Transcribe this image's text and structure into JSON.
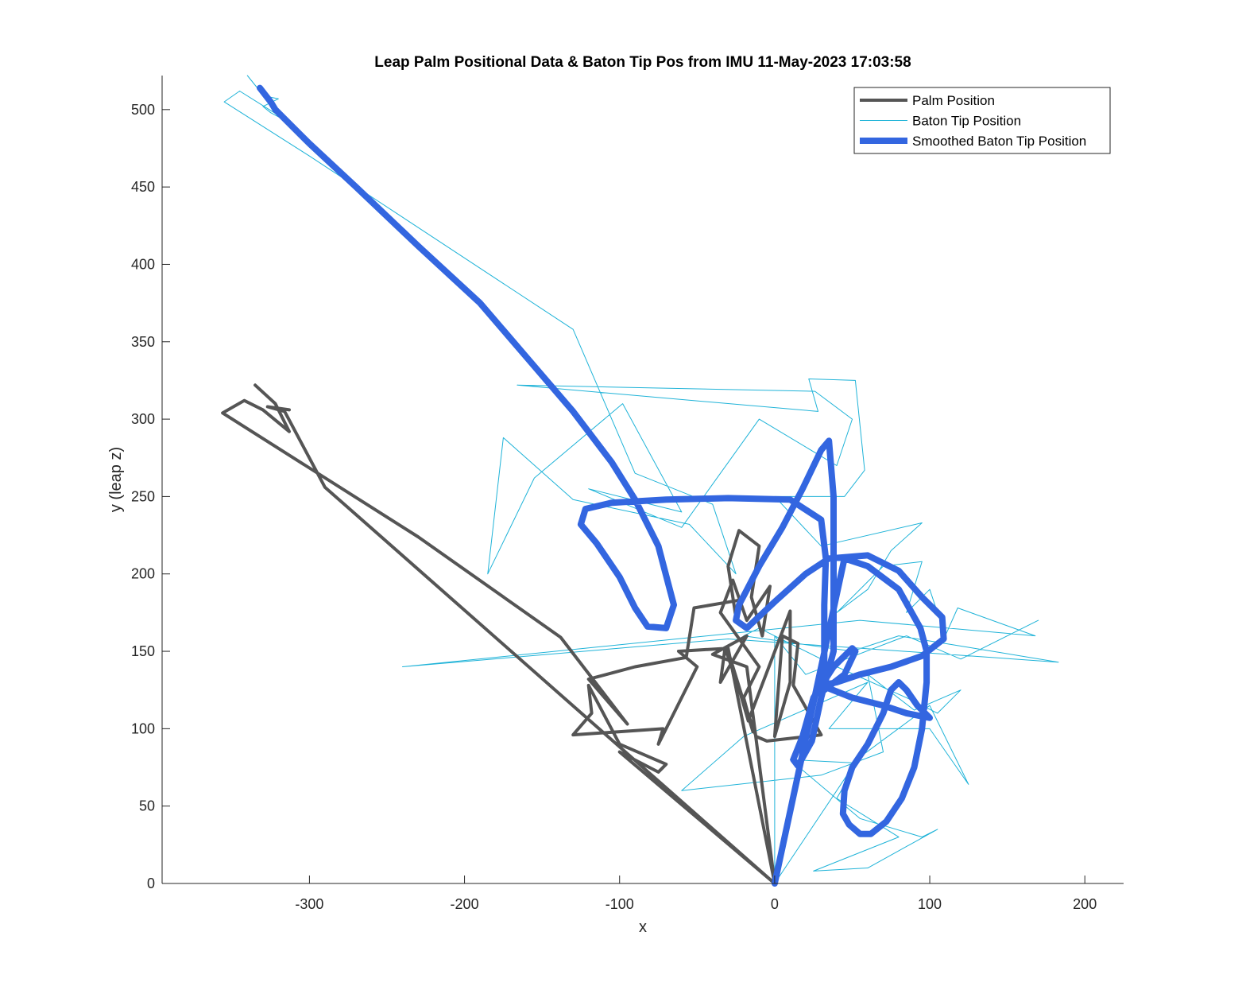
{
  "chart_data": {
    "type": "line",
    "title": "Leap Palm Positional Data & Baton Tip Pos from IMU 11-May-2023 17:03:58",
    "xlabel": "x",
    "ylabel": "y (leap z)",
    "xlim": [
      -395,
      225
    ],
    "ylim": [
      0,
      522
    ],
    "xticks": [
      -300,
      -200,
      -100,
      0,
      100,
      200
    ],
    "yticks": [
      0,
      50,
      100,
      150,
      200,
      250,
      300,
      350,
      400,
      450,
      500
    ],
    "grid": false,
    "legend_position": "top-right",
    "series": [
      {
        "name": "Palm Position",
        "color": "#555555",
        "width": 4,
        "points": [
          [
            -335,
            322
          ],
          [
            -322,
            310
          ],
          [
            -313,
            292
          ],
          [
            -330,
            306
          ],
          [
            -342,
            312
          ],
          [
            -356,
            304
          ],
          [
            -230,
            224
          ],
          [
            -138,
            159
          ],
          [
            -95,
            103
          ],
          [
            -120,
            132
          ],
          [
            -105,
            136
          ],
          [
            -90,
            140
          ],
          [
            -57,
            146
          ],
          [
            -52,
            178
          ],
          [
            -23,
            183
          ],
          [
            -25,
            172
          ],
          [
            -30,
            205
          ],
          [
            -23,
            228
          ],
          [
            -10,
            218
          ],
          [
            -15,
            185
          ],
          [
            -8,
            160
          ],
          [
            -3,
            192
          ],
          [
            -18,
            170
          ],
          [
            -27,
            196
          ],
          [
            -35,
            175
          ],
          [
            -10,
            140
          ],
          [
            -20,
            120
          ],
          [
            -14,
            98
          ],
          [
            -30,
            150
          ],
          [
            -17,
            105
          ],
          [
            10,
            176
          ],
          [
            10,
            130
          ],
          [
            0,
            95
          ],
          [
            5,
            160
          ],
          [
            15,
            155
          ],
          [
            12,
            128
          ],
          [
            30,
            96
          ],
          [
            -5,
            92
          ],
          [
            -12,
            95
          ],
          [
            -32,
            152
          ],
          [
            -35,
            130
          ],
          [
            -18,
            160
          ],
          [
            -40,
            148
          ],
          [
            -18,
            140
          ],
          [
            0,
            0
          ],
          [
            -30,
            152
          ],
          [
            -62,
            150
          ],
          [
            -50,
            140
          ],
          [
            -75,
            90
          ],
          [
            -72,
            100
          ],
          [
            -130,
            96
          ],
          [
            -118,
            110
          ],
          [
            -120,
            128
          ],
          [
            -100,
            90
          ],
          [
            -70,
            77
          ],
          [
            -75,
            72
          ],
          [
            -100,
            85
          ],
          [
            0,
            0
          ],
          [
            -290,
            256
          ],
          [
            -316,
            305
          ],
          [
            -327,
            308
          ],
          [
            -313,
            306
          ]
        ]
      },
      {
        "name": "Baton Tip Position",
        "color": "#1fb3d8",
        "width": 1,
        "points": [
          [
            -340,
            522
          ],
          [
            -332,
            512
          ],
          [
            -325,
            508
          ],
          [
            -320,
            507
          ],
          [
            -330,
            502
          ],
          [
            -325,
            498
          ],
          [
            -310,
            490
          ],
          [
            -345,
            512
          ],
          [
            -355,
            505
          ],
          [
            -300,
            470
          ],
          [
            -130,
            358
          ],
          [
            -90,
            265
          ],
          [
            -40,
            245
          ],
          [
            -25,
            200
          ],
          [
            -55,
            232
          ],
          [
            -130,
            248
          ],
          [
            -175,
            288
          ],
          [
            -185,
            200
          ],
          [
            -155,
            262
          ],
          [
            -98,
            310
          ],
          [
            -60,
            240
          ],
          [
            -120,
            255
          ],
          [
            -60,
            230
          ],
          [
            -10,
            300
          ],
          [
            40,
            270
          ],
          [
            50,
            300
          ],
          [
            26,
            318
          ],
          [
            -166,
            322
          ],
          [
            28,
            305
          ],
          [
            22,
            326
          ],
          [
            52,
            325
          ],
          [
            58,
            267
          ],
          [
            45,
            250
          ],
          [
            0,
            250
          ],
          [
            30,
            218
          ],
          [
            95,
            233
          ],
          [
            75,
            215
          ],
          [
            60,
            190
          ],
          [
            40,
            175
          ],
          [
            70,
            205
          ],
          [
            95,
            208
          ],
          [
            85,
            175
          ],
          [
            100,
            190
          ],
          [
            110,
            160
          ],
          [
            118,
            178
          ],
          [
            168,
            160
          ],
          [
            55,
            170
          ],
          [
            -240,
            140
          ],
          [
            -30,
            158
          ],
          [
            183,
            143
          ],
          [
            110,
            155
          ],
          [
            80,
            160
          ],
          [
            50,
            150
          ],
          [
            -20,
            160
          ],
          [
            -10,
            165
          ],
          [
            40,
            140
          ],
          [
            85,
            120
          ],
          [
            105,
            110
          ],
          [
            120,
            125
          ],
          [
            90,
            112
          ],
          [
            60,
            135
          ],
          [
            70,
            85
          ],
          [
            30,
            70
          ],
          [
            -60,
            60
          ],
          [
            -20,
            95
          ],
          [
            60,
            130
          ],
          [
            35,
            100
          ],
          [
            100,
            100
          ],
          [
            125,
            64
          ],
          [
            100,
            115
          ],
          [
            50,
            78
          ],
          [
            10,
            80
          ],
          [
            55,
            42
          ],
          [
            95,
            30
          ],
          [
            105,
            35
          ],
          [
            60,
            10
          ],
          [
            25,
            8
          ],
          [
            80,
            30
          ],
          [
            40,
            55
          ],
          [
            60,
            90
          ],
          [
            0,
            0
          ],
          [
            0,
            160
          ],
          [
            20,
            135
          ],
          [
            85,
            160
          ],
          [
            120,
            145
          ],
          [
            170,
            170
          ]
        ]
      },
      {
        "name": "Smoothed Baton Tip Position",
        "color": "#3366e0",
        "width": 8,
        "points": [
          [
            -332,
            514
          ],
          [
            -325,
            505
          ],
          [
            -322,
            500
          ],
          [
            -300,
            478
          ],
          [
            -270,
            450
          ],
          [
            -230,
            412
          ],
          [
            -190,
            375
          ],
          [
            -160,
            340
          ],
          [
            -130,
            305
          ],
          [
            -105,
            272
          ],
          [
            -90,
            248
          ],
          [
            -75,
            218
          ],
          [
            -65,
            180
          ],
          [
            -70,
            165
          ],
          [
            -82,
            166
          ],
          [
            -90,
            178
          ],
          [
            -100,
            198
          ],
          [
            -115,
            220
          ],
          [
            -125,
            232
          ],
          [
            -122,
            242
          ],
          [
            -105,
            246
          ],
          [
            -70,
            248
          ],
          [
            -30,
            249
          ],
          [
            10,
            248
          ],
          [
            30,
            235
          ],
          [
            33,
            210
          ],
          [
            32,
            180
          ],
          [
            32,
            150
          ],
          [
            32,
            125
          ],
          [
            45,
            135
          ],
          [
            52,
            150
          ],
          [
            50,
            152
          ],
          [
            38,
            140
          ],
          [
            25,
            120
          ],
          [
            18,
            95
          ],
          [
            12,
            80
          ],
          [
            15,
            76
          ],
          [
            24,
            92
          ],
          [
            30,
            120
          ],
          [
            38,
            150
          ],
          [
            38,
            200
          ],
          [
            38,
            250
          ],
          [
            35,
            286
          ],
          [
            30,
            280
          ],
          [
            18,
            255
          ],
          [
            5,
            230
          ],
          [
            -10,
            205
          ],
          [
            -23,
            180
          ],
          [
            -25,
            170
          ],
          [
            -18,
            165
          ],
          [
            0,
            182
          ],
          [
            20,
            200
          ],
          [
            35,
            210
          ],
          [
            60,
            212
          ],
          [
            80,
            202
          ],
          [
            95,
            185
          ],
          [
            108,
            172
          ],
          [
            109,
            158
          ],
          [
            95,
            147
          ],
          [
            75,
            140
          ],
          [
            55,
            135
          ],
          [
            40,
            130
          ],
          [
            30,
            128
          ],
          [
            50,
            120
          ],
          [
            70,
            115
          ],
          [
            85,
            110
          ],
          [
            95,
            108
          ],
          [
            100,
            107
          ],
          [
            92,
            115
          ],
          [
            85,
            125
          ],
          [
            80,
            130
          ],
          [
            75,
            125
          ],
          [
            70,
            110
          ],
          [
            60,
            90
          ],
          [
            50,
            75
          ],
          [
            45,
            60
          ],
          [
            44,
            45
          ],
          [
            48,
            38
          ],
          [
            55,
            32
          ],
          [
            62,
            32
          ],
          [
            72,
            40
          ],
          [
            82,
            55
          ],
          [
            90,
            75
          ],
          [
            95,
            100
          ],
          [
            98,
            130
          ],
          [
            98,
            150
          ],
          [
            94,
            165
          ],
          [
            80,
            190
          ],
          [
            60,
            205
          ],
          [
            45,
            210
          ],
          [
            0,
            0
          ]
        ]
      }
    ]
  }
}
